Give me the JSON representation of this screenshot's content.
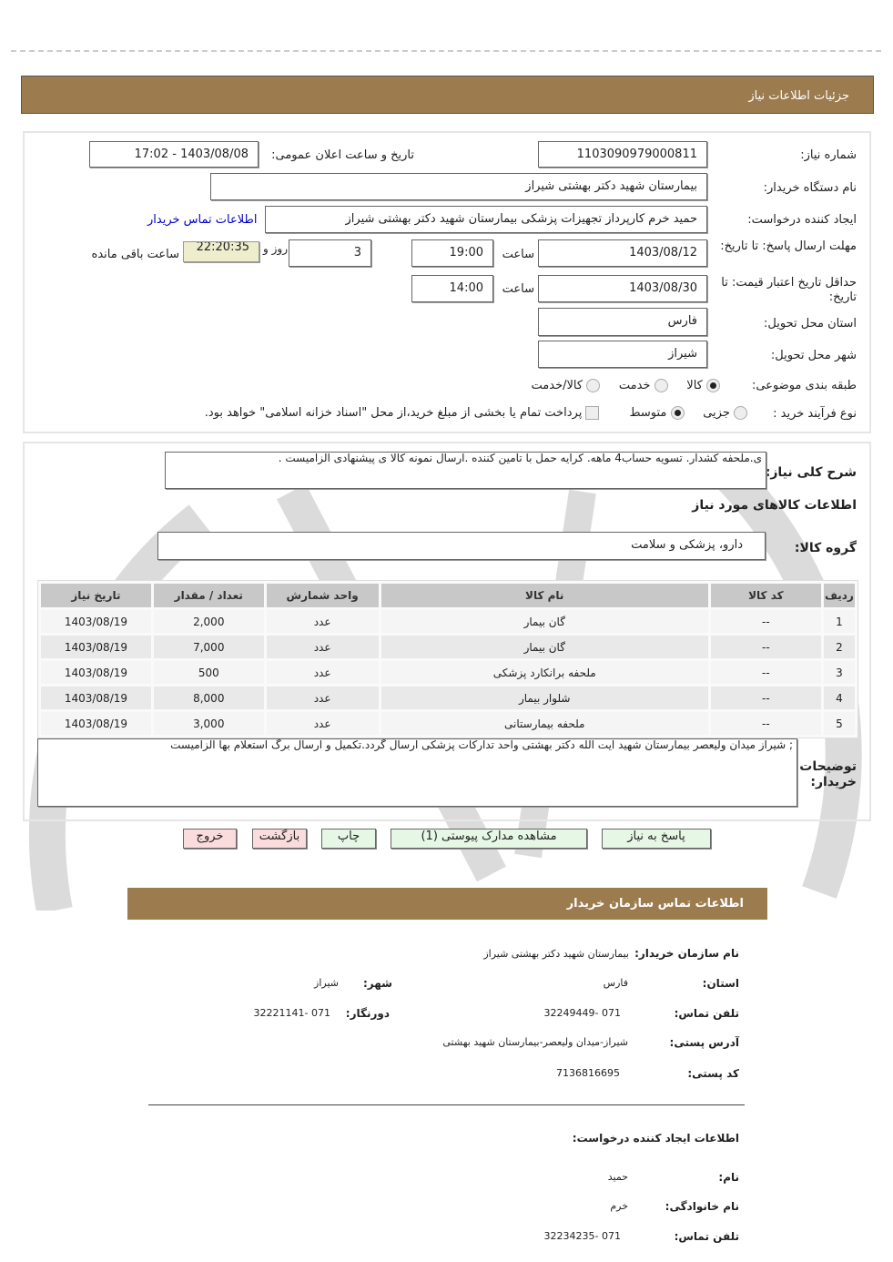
{
  "header": {
    "title": "جزئیات اطلاعات نیاز"
  },
  "fields": {
    "need_number_label": "شماره نیاز:",
    "need_number": "1103090979000811",
    "announce_label": "تاریخ و ساعت اعلان عمومی:",
    "announce_value": "1403/08/08 - 17:02",
    "buyer_label": "نام دستگاه خریدار:",
    "buyer": "بیمارستان شهید دکتر بهشتی شیراز",
    "creator_label": "ایجاد کننده درخواست:",
    "creator": "حمید خرم کارپرداز تجهیزات پزشکی بیمارستان شهید دکتر بهشتی شیراز",
    "contact_link": "اطلاعات تماس خریدار",
    "deadline_label": "مهلت ارسال پاسخ: تا تاریخ:",
    "deadline_date": "1403/08/12",
    "time_label": "ساعت",
    "deadline_time": "19:00",
    "days": "3",
    "days_label": "روز و",
    "countdown": "22:20:35",
    "remaining_label": "ساعت باقی مانده",
    "validity_label": "حداقل تاریخ اعتبار قیمت: تا تاریخ:",
    "validity_date": "1403/08/30",
    "validity_time": "14:00",
    "province_label": "استان محل تحویل:",
    "province": "فارس",
    "city_label": "شهر محل تحویل:",
    "city": "شیراز",
    "category_label": "طبقه بندی موضوعی:",
    "category_options": [
      "کالا",
      "خدمت",
      "کالا/خدمت"
    ],
    "category_selected": "کالا",
    "process_label": "نوع فرآیند خرید :",
    "process_options": [
      "جزیی",
      "متوسط"
    ],
    "process_selected": "متوسط",
    "payment_note": "پرداخت تمام یا بخشی از مبلغ خرید،از محل \"اسناد خزانه اسلامی\" خواهد بود."
  },
  "description": {
    "label": "شرح کلی نیاز:",
    "text": "ی.ملحفه کشدار. تسویه حساب4 ماهه. کرایه حمل با تامین کننده .ارسال نمونه کالا ی پیشنهادی الزامیست ."
  },
  "goods_title": "اطلاعات کالاهای مورد نیاز",
  "group": {
    "label": "گروه کالا:",
    "value": "دارو، پزشکی و سلامت"
  },
  "table": {
    "headers": [
      "ردیف",
      "کد کالا",
      "نام کالا",
      "واحد شمارش",
      "تعداد / مقدار",
      "تاریخ نیاز"
    ],
    "rows": [
      [
        "1",
        "--",
        "گان بیمار",
        "عدد",
        "2,000",
        "1403/08/19"
      ],
      [
        "2",
        "--",
        "گان بیمار",
        "عدد",
        "7,000",
        "1403/08/19"
      ],
      [
        "3",
        "--",
        "ملحفه برانکارد پزشکی",
        "عدد",
        "500",
        "1403/08/19"
      ],
      [
        "4",
        "--",
        "شلوار بیمار",
        "عدد",
        "8,000",
        "1403/08/19"
      ],
      [
        "5",
        "--",
        "ملحفه بیمارستانی",
        "عدد",
        "3,000",
        "1403/08/19"
      ]
    ]
  },
  "comments": {
    "label": "توضیحات خریدار:",
    "text": "; شیراز میدان ولیعصر بیمارستان شهید ایت الله دکتر بهشتی واحد تدارکات پزشکی ارسال گردد.تکمیل و ارسال برگ استعلام بها الزامیست"
  },
  "buttons": {
    "reply": "پاسخ به نیاز",
    "docs": "مشاهده مدارک پیوستی (1)",
    "print": "چاپ",
    "back": "بازگشت",
    "exit": "خروج"
  },
  "contact": {
    "title": "اطلاعات تماس سازمان خریدار",
    "org_label": "نام سازمان خریدار:",
    "org": "بیمارستان شهید دکتر بهشتی شیراز",
    "province_label": "استان:",
    "province": "فارس",
    "city_label": "شهر:",
    "city": "شیراز",
    "phone_label": "تلفن تماس:",
    "phone": "071 -32249449",
    "fax_label": "دورنگار:",
    "fax": "071 -32221141",
    "address_label": "آدرس پستی:",
    "address": "شیراز-میدان ولیعصر-بیمارستان شهید بهشتی",
    "postal_label": "کد پستی:",
    "postal": "7136816695",
    "creator_title": "اطلاعات ایجاد کننده درخواست:",
    "name_label": "نام:",
    "name": "حمید",
    "family_label": "نام خانوادگی:",
    "family": "خرم",
    "creator_phone_label": "تلفن تماس:",
    "creator_phone": "071 -32234235"
  },
  "colors": {
    "header": "#9c7b4f",
    "countdown_bg": "#eeeecc",
    "link": "#0000cc"
  }
}
